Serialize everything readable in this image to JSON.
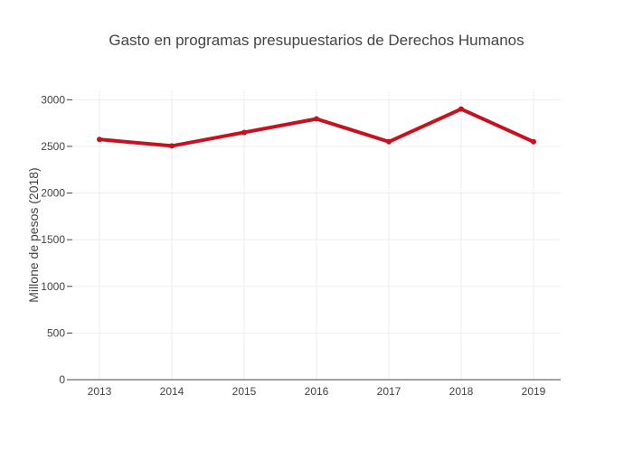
{
  "chart_data": {
    "type": "line",
    "title": "Gasto en programas presupuestarios de Derechos Humanos",
    "xlabel": "",
    "ylabel": "Millone de pesos (2018)",
    "categories": [
      "2013",
      "2014",
      "2015",
      "2016",
      "2017",
      "2018",
      "2019"
    ],
    "series": [
      {
        "values": [
          2575,
          2505,
          2650,
          2795,
          2550,
          2900,
          2550
        ],
        "color": "#c8101e"
      }
    ],
    "ylim": [
      0,
      3100
    ],
    "yticks": [
      0,
      500,
      1000,
      1500,
      2000,
      2500,
      3000
    ],
    "grid": true,
    "legend": "none"
  }
}
